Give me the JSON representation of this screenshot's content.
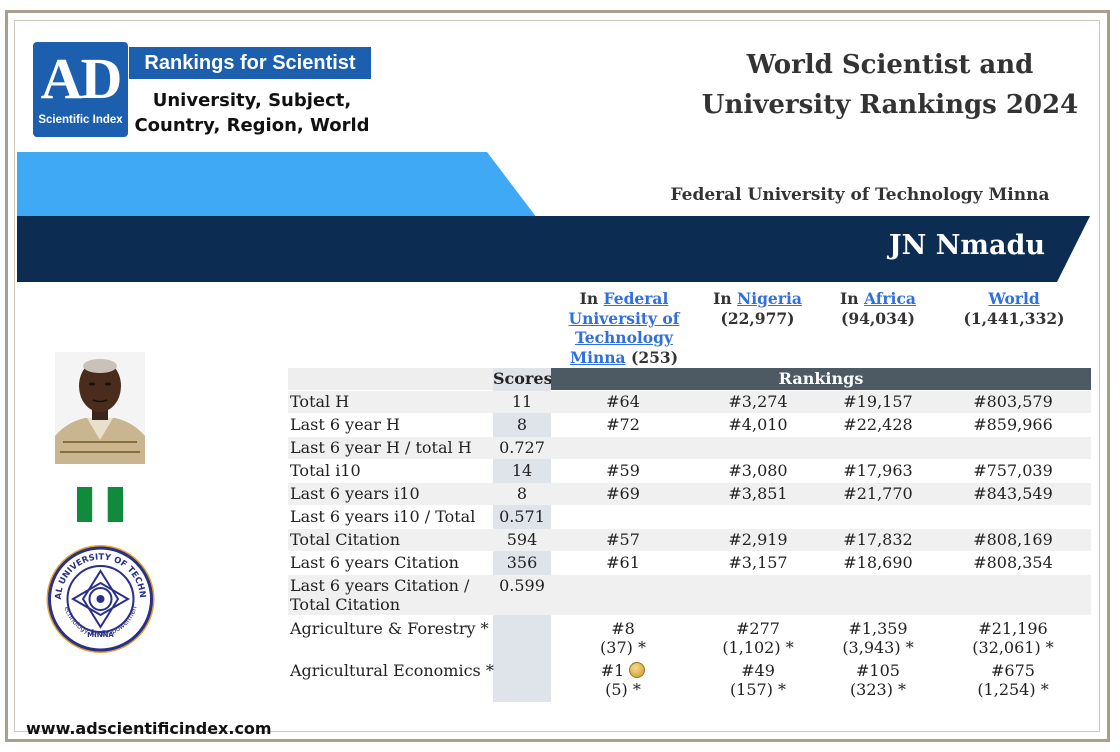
{
  "logo": {
    "letters": "AD",
    "sub": "Scientific Index",
    "banner": "Rankings for Scientist",
    "line1": "University, Subject,",
    "line2": "Country, Region, World"
  },
  "title": {
    "line1": "World Scientist and",
    "line2": "University Rankings 2024"
  },
  "university": "Federal University of Technology Minna",
  "scientist_name": "JN Nmadu",
  "colors": {
    "accent_blue": "#1b5fae",
    "dark_navy": "#0d2c52",
    "light_blue": "#3fa9f5",
    "rank_header": "#4e5a63",
    "link": "#2f6fe0"
  },
  "columns": [
    {
      "prefix": "In ",
      "link": "Federal University of Technology Minna",
      "count": "(253)"
    },
    {
      "prefix": "In ",
      "link": "Nigeria",
      "count": "(22,977)"
    },
    {
      "prefix": "In ",
      "link": "Africa",
      "count": "(94,034)"
    },
    {
      "prefix": "",
      "link": "World",
      "count": "(1,441,332)"
    }
  ],
  "table": {
    "scores_header": "Scores",
    "rankings_header": "Rankings",
    "rows": [
      {
        "label": "Total H",
        "score": "11",
        "r1": "#64",
        "r2": "#3,274",
        "r3": "#19,157",
        "r4": "#803,579"
      },
      {
        "label": "Last 6 year H",
        "score": "8",
        "r1": "#72",
        "r2": "#4,010",
        "r3": "#22,428",
        "r4": "#859,966"
      },
      {
        "label": "Last 6 year H / total H",
        "score": "0.727",
        "r1": "",
        "r2": "",
        "r3": "",
        "r4": ""
      },
      {
        "label": "Total i10",
        "score": "14",
        "r1": "#59",
        "r2": "#3,080",
        "r3": "#17,963",
        "r4": "#757,039"
      },
      {
        "label": "Last 6 years i10",
        "score": "8",
        "r1": "#69",
        "r2": "#3,851",
        "r3": "#21,770",
        "r4": "#843,549"
      },
      {
        "label": "Last 6 years i10 / Total i10",
        "score": "0.571",
        "r1": "",
        "r2": "",
        "r3": "",
        "r4": ""
      },
      {
        "label": "Total Citation",
        "score": "594",
        "r1": "#57",
        "r2": "#2,919",
        "r3": "#17,832",
        "r4": "#808,169"
      },
      {
        "label": "Last 6 years Citation",
        "score": "356",
        "r1": "#61",
        "r2": "#3,157",
        "r3": "#18,690",
        "r4": "#808,354"
      },
      {
        "label": "Last 6 years Citation / Total Citation",
        "label_line1": "Last 6 years Citation /",
        "label_line2": "Total Citation",
        "score": "0.599",
        "r1": "",
        "r2": "",
        "r3": "",
        "r4": ""
      },
      {
        "label": "Agriculture & Forestry *",
        "score": "",
        "r1": "#8",
        "r1b": "(37) *",
        "r2": "#277",
        "r2b": "(1,102) *",
        "r3": "#1,359",
        "r3b": "(3,943) *",
        "r4": "#21,196",
        "r4b": "(32,061) *"
      },
      {
        "label": "Agricultural Economics *",
        "score": "",
        "r1": "#1",
        "r1b": "(5) *",
        "r2": "#49",
        "r2b": "(157) *",
        "r3": "#105",
        "r3b": "(323) *",
        "r4": "#675",
        "r4b": "(1,254) *",
        "medal": "gold-medal-icon"
      }
    ]
  },
  "website": "www.adscientificindex.com",
  "images": {
    "portrait": "scientist-portrait",
    "flag": "nigeria-flag-icon",
    "seal": "university-seal",
    "seal_text_top": "FEDERAL UNIVERSITY OF TECHNOLOGY",
    "seal_text_bottom": "MINNA",
    "seal_motto": "Technology for Empowerment"
  }
}
